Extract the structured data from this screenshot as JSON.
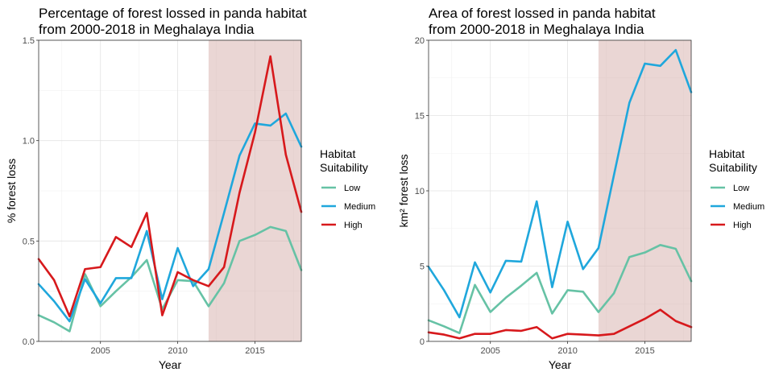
{
  "legend": {
    "title_line1": "Habitat",
    "title_line2": "Suitability",
    "items": [
      {
        "label": "Low",
        "color": "#66c2a5"
      },
      {
        "label": "Medium",
        "color": "#1fa7dc"
      },
      {
        "label": "High",
        "color": "#d7191c"
      }
    ]
  },
  "shade_color": "#d8b5b0",
  "chart_data": [
    {
      "type": "line",
      "title_line1": "Percentage of forest lossed in panda habitat",
      "title_line2": "from 2000-2018 in Meghalaya India",
      "xlabel": "Year",
      "ylabel": "% forest loss",
      "xlim": [
        2001,
        2018
      ],
      "ylim": [
        0,
        1.5
      ],
      "xticks": [
        2005,
        2010,
        2015
      ],
      "yticks": [
        0,
        0.5,
        1.0,
        1.5
      ],
      "ytick_labels": [
        "0.0",
        "0.5",
        "1.0",
        "1.5"
      ],
      "shaded_range": [
        2012,
        2018
      ],
      "grid": true,
      "x": [
        2001,
        2002,
        2003,
        2004,
        2005,
        2006,
        2007,
        2008,
        2009,
        2010,
        2011,
        2012,
        2013,
        2014,
        2015,
        2016,
        2017,
        2018
      ],
      "series": [
        {
          "name": "Low",
          "color": "#66c2a5",
          "values": [
            0.13,
            0.095,
            0.05,
            0.335,
            0.175,
            0.25,
            0.32,
            0.405,
            0.16,
            0.305,
            0.3,
            0.175,
            0.29,
            0.5,
            0.53,
            0.57,
            0.55,
            0.355
          ]
        },
        {
          "name": "Medium",
          "color": "#1fa7dc",
          "values": [
            0.285,
            0.2,
            0.1,
            0.31,
            0.19,
            0.315,
            0.315,
            0.55,
            0.21,
            0.465,
            0.275,
            0.36,
            0.64,
            0.925,
            1.085,
            1.075,
            1.135,
            0.97
          ]
        },
        {
          "name": "High",
          "color": "#d7191c",
          "values": [
            0.41,
            0.305,
            0.125,
            0.36,
            0.37,
            0.52,
            0.47,
            0.64,
            0.13,
            0.345,
            0.305,
            0.275,
            0.37,
            0.74,
            1.04,
            1.42,
            0.93,
            0.645
          ]
        }
      ]
    },
    {
      "type": "line",
      "title_line1": "Area of forest lossed in panda habitat",
      "title_line2": "from 2000-2018 in Meghalaya India",
      "xlabel": "Year",
      "ylabel": "km² forest loss",
      "xlim": [
        2001,
        2018
      ],
      "ylim": [
        0,
        20
      ],
      "xticks": [
        2005,
        2010,
        2015
      ],
      "yticks": [
        0,
        5,
        10,
        15,
        20
      ],
      "ytick_labels": [
        "0",
        "5",
        "10",
        "15",
        "20"
      ],
      "shaded_range": [
        2012,
        2018
      ],
      "grid": true,
      "x": [
        2001,
        2002,
        2003,
        2004,
        2005,
        2006,
        2007,
        2008,
        2009,
        2010,
        2011,
        2012,
        2013,
        2014,
        2015,
        2016,
        2017,
        2018
      ],
      "series": [
        {
          "name": "Low",
          "color": "#66c2a5",
          "values": [
            1.4,
            1.0,
            0.55,
            3.75,
            1.95,
            2.9,
            3.7,
            4.55,
            1.85,
            3.4,
            3.3,
            1.95,
            3.2,
            5.6,
            5.9,
            6.4,
            6.15,
            4.0
          ]
        },
        {
          "name": "Medium",
          "color": "#1fa7dc",
          "values": [
            4.95,
            3.4,
            1.6,
            5.25,
            3.25,
            5.35,
            5.3,
            9.3,
            3.6,
            7.95,
            4.8,
            6.2,
            11.05,
            15.85,
            18.45,
            18.3,
            19.35,
            16.55
          ]
        },
        {
          "name": "High",
          "color": "#d7191c",
          "values": [
            0.6,
            0.45,
            0.2,
            0.5,
            0.5,
            0.75,
            0.7,
            0.95,
            0.2,
            0.5,
            0.45,
            0.4,
            0.5,
            1.0,
            1.5,
            2.1,
            1.35,
            0.95
          ]
        }
      ]
    }
  ]
}
